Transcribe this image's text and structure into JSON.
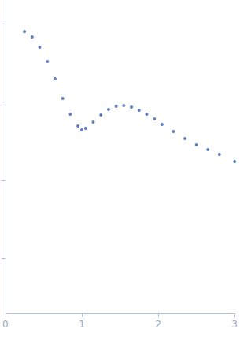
{
  "chart_data": {
    "type": "scatter",
    "color": "#3a62b3",
    "marker": "circle",
    "log": "y",
    "grid": false,
    "tick_labels": "x",
    "x": [
      0.25,
      0.35,
      0.45,
      0.55,
      0.65,
      0.75,
      0.85,
      0.95,
      1.0,
      1.05,
      1.15,
      1.25,
      1.35,
      1.45,
      1.55,
      1.65,
      1.75,
      1.85,
      1.95,
      2.05,
      2.2,
      2.35,
      2.5,
      2.65,
      2.8,
      3.0
    ],
    "values": [
      0.79,
      0.675,
      0.5,
      0.329,
      0.198,
      0.111,
      0.0698,
      0.0493,
      0.044,
      0.0459,
      0.0553,
      0.0682,
      0.0802,
      0.0879,
      0.0899,
      0.0859,
      0.0783,
      0.0698,
      0.0607,
      0.0516,
      0.042,
      0.034,
      0.0283,
      0.0246,
      0.0214,
      0.0174
    ],
    "xlim": [
      0,
      3
    ],
    "xticks": [
      0,
      1,
      2,
      3
    ],
    "ylim": [
      0.0002,
      2
    ],
    "yticks": [
      0.001,
      0.01,
      0.1,
      1
    ]
  }
}
